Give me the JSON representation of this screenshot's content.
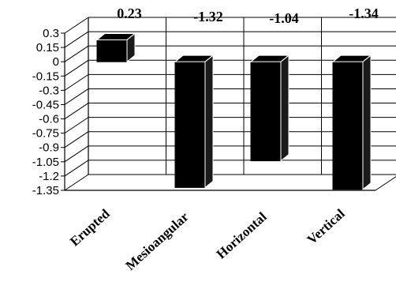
{
  "chart_data": {
    "type": "bar",
    "style": "3d-column",
    "categories": [
      "Erupted",
      "Mesioangular",
      "Horizontal",
      "Vertical"
    ],
    "values": [
      0.23,
      -1.32,
      -1.04,
      -1.34
    ],
    "data_labels": [
      "0.23",
      "-1.32",
      "-1.04",
      "-1.34"
    ],
    "yticks": [
      0.3,
      0.15,
      0,
      -0.15,
      -0.3,
      -0.45,
      -0.6,
      -0.75,
      -0.9,
      -1.05,
      -1.2,
      -1.35
    ],
    "ytick_labels": [
      "0.3",
      "0.15",
      "0",
      "-0.15",
      "-0.3",
      "-0.45",
      "-0.6",
      "-0.75",
      "-0.9",
      "-1.05",
      "-1.2",
      "-1.35"
    ],
    "ylim": [
      -1.35,
      0.3
    ],
    "title": "",
    "xlabel": "",
    "ylabel": "",
    "grid": true,
    "legend": "none",
    "bar_color": "#000000",
    "bar_side_color": "#1a1a1a"
  }
}
